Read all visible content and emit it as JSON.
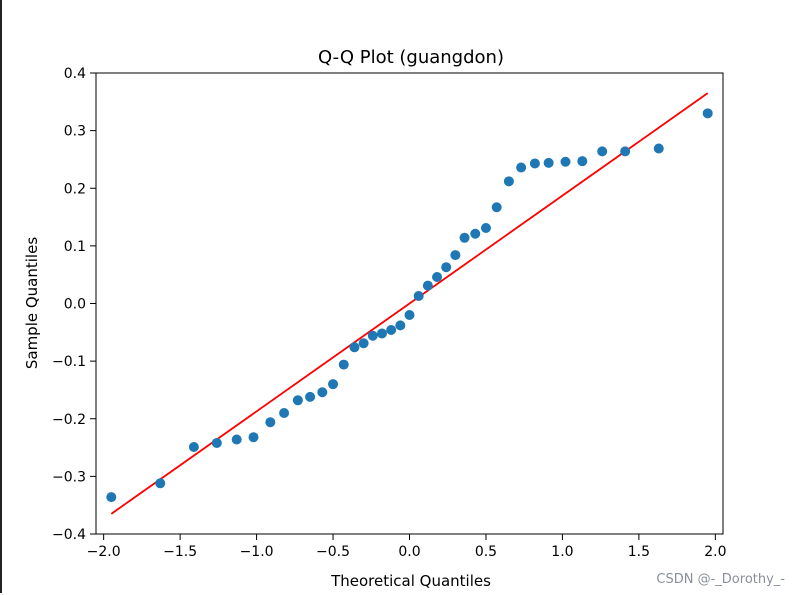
{
  "chart_data": {
    "type": "scatter",
    "title": "Q-Q Plot (guangdon)",
    "xlabel": "Theoretical Quantiles",
    "ylabel": "Sample Quantiles",
    "xlim": [
      -2.05,
      2.05
    ],
    "ylim": [
      -0.4,
      0.4
    ],
    "x_ticks": [
      -2.0,
      -1.5,
      -1.0,
      -0.5,
      0.0,
      0.5,
      1.0,
      1.5,
      2.0
    ],
    "x_tick_labels": [
      "−2.0",
      "−1.5",
      "−1.0",
      "−0.5",
      "0.0",
      "0.5",
      "1.0",
      "1.5",
      "2.0"
    ],
    "y_ticks": [
      -0.4,
      -0.3,
      -0.2,
      -0.1,
      0.0,
      0.1,
      0.2,
      0.3,
      0.4
    ],
    "y_tick_labels": [
      "−0.4",
      "−0.3",
      "−0.2",
      "−0.1",
      "0.0",
      "0.1",
      "0.2",
      "0.3",
      "0.4"
    ],
    "grid": false,
    "points": {
      "color": "#1f77b4",
      "x": [
        -1.95,
        -1.63,
        -1.41,
        -1.26,
        -1.13,
        -1.02,
        -0.91,
        -0.82,
        -0.73,
        -0.65,
        -0.57,
        -0.5,
        -0.43,
        -0.36,
        -0.3,
        -0.24,
        -0.18,
        -0.12,
        -0.06,
        0.0,
        0.06,
        0.12,
        0.18,
        0.24,
        0.3,
        0.36,
        0.43,
        0.5,
        0.57,
        0.65,
        0.73,
        0.82,
        0.91,
        1.02,
        1.13,
        1.26,
        1.41,
        1.63,
        1.95
      ],
      "y": [
        -0.336,
        -0.312,
        -0.249,
        -0.242,
        -0.236,
        -0.232,
        -0.206,
        -0.19,
        -0.168,
        -0.162,
        -0.154,
        -0.14,
        -0.106,
        -0.076,
        -0.069,
        -0.056,
        -0.052,
        -0.046,
        -0.038,
        -0.02,
        0.013,
        0.031,
        0.046,
        0.063,
        0.084,
        0.114,
        0.121,
        0.131,
        0.167,
        0.212,
        0.236,
        0.243,
        0.244,
        0.246,
        0.247,
        0.264,
        0.264,
        0.269,
        0.33
      ]
    },
    "reference_line": {
      "color": "#ff0000",
      "x": [
        -1.95,
        1.95
      ],
      "y": [
        -0.365,
        0.365
      ]
    }
  },
  "watermark": "CSDN @-_Dorothy_-"
}
